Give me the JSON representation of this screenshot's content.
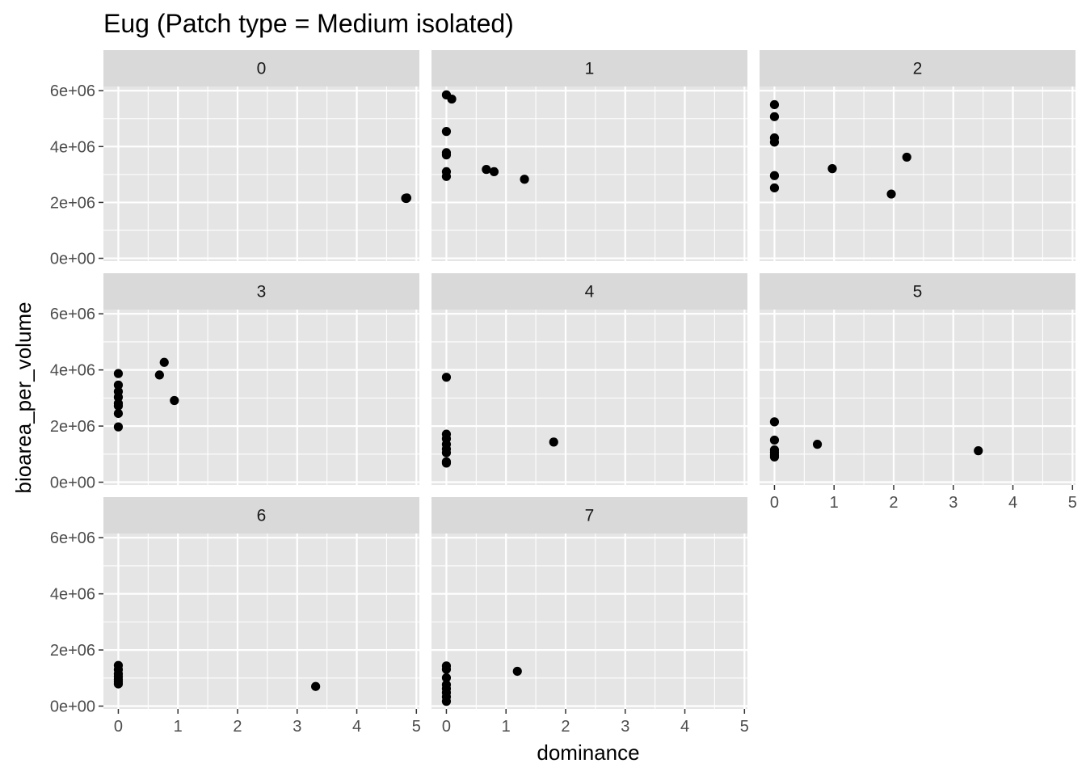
{
  "chart_data": {
    "type": "scatter",
    "title": "Eug (Patch type = Medium isolated)",
    "xlabel": "dominance",
    "ylabel": "bioarea_per_volume",
    "xlim": [
      -0.25,
      5.05
    ],
    "ylim": [
      -100000,
      6150000
    ],
    "x_ticks": [
      0,
      1,
      2,
      3,
      4,
      5
    ],
    "x_tick_labels": [
      "0",
      "1",
      "2",
      "3",
      "4",
      "5"
    ],
    "y_ticks": [
      0,
      2000000,
      4000000,
      6000000
    ],
    "y_tick_labels": [
      "0e+00",
      "2e+06",
      "4e+06",
      "6e+06"
    ],
    "grid": true,
    "colors": {
      "panel_background": "#e5e5e5",
      "strip_background": "#d9d9d9",
      "grid": "#ffffff",
      "point": "#000000"
    },
    "panels": [
      {
        "label": "0",
        "points": [
          [
            4.82,
            2150000
          ],
          [
            4.84,
            2160000
          ],
          [
            4.83,
            2140000
          ]
        ]
      },
      {
        "label": "1",
        "points": [
          [
            0.0,
            5850000
          ],
          [
            0.09,
            5700000
          ],
          [
            0.0,
            4540000
          ],
          [
            0.0,
            3780000
          ],
          [
            0.0,
            3700000
          ],
          [
            0.0,
            3100000
          ],
          [
            0.0,
            2930000
          ],
          [
            0.67,
            3180000
          ],
          [
            0.8,
            3100000
          ],
          [
            1.31,
            2830000
          ]
        ]
      },
      {
        "label": "2",
        "points": [
          [
            0.0,
            5500000
          ],
          [
            0.0,
            5070000
          ],
          [
            0.0,
            4310000
          ],
          [
            0.0,
            4160000
          ],
          [
            0.0,
            2960000
          ],
          [
            0.0,
            2520000
          ],
          [
            0.97,
            3210000
          ],
          [
            1.96,
            2300000
          ],
          [
            2.22,
            3620000
          ]
        ]
      },
      {
        "label": "3",
        "points": [
          [
            0.0,
            3870000
          ],
          [
            0.0,
            3460000
          ],
          [
            0.0,
            3230000
          ],
          [
            0.0,
            3030000
          ],
          [
            0.0,
            2810000
          ],
          [
            0.0,
            2720000
          ],
          [
            0.0,
            2450000
          ],
          [
            0.0,
            1970000
          ],
          [
            0.69,
            3820000
          ],
          [
            0.77,
            4270000
          ],
          [
            0.94,
            2910000
          ]
        ]
      },
      {
        "label": "4",
        "points": [
          [
            0.0,
            3740000
          ],
          [
            0.0,
            1710000
          ],
          [
            0.0,
            1550000
          ],
          [
            0.0,
            1350000
          ],
          [
            0.0,
            1180000
          ],
          [
            0.0,
            1050000
          ],
          [
            0.0,
            730000
          ],
          [
            0.0,
            680000
          ],
          [
            1.8,
            1430000
          ]
        ]
      },
      {
        "label": "5",
        "points": [
          [
            0.0,
            2150000
          ],
          [
            0.0,
            1500000
          ],
          [
            0.0,
            1150000
          ],
          [
            0.0,
            1060000
          ],
          [
            0.0,
            970000
          ],
          [
            0.0,
            900000
          ],
          [
            0.72,
            1350000
          ],
          [
            3.42,
            1120000
          ]
        ]
      },
      {
        "label": "6",
        "points": [
          [
            0.0,
            1450000
          ],
          [
            0.0,
            1300000
          ],
          [
            0.0,
            1150000
          ],
          [
            0.0,
            1050000
          ],
          [
            0.0,
            950000
          ],
          [
            0.0,
            870000
          ],
          [
            0.0,
            790000
          ],
          [
            3.31,
            700000
          ]
        ]
      },
      {
        "label": "7",
        "points": [
          [
            0.0,
            1430000
          ],
          [
            0.0,
            1310000
          ],
          [
            0.0,
            1010000
          ],
          [
            0.0,
            760000
          ],
          [
            0.0,
            620000
          ],
          [
            0.0,
            480000
          ],
          [
            0.0,
            330000
          ],
          [
            0.0,
            170000
          ],
          [
            1.19,
            1240000
          ]
        ]
      }
    ]
  }
}
